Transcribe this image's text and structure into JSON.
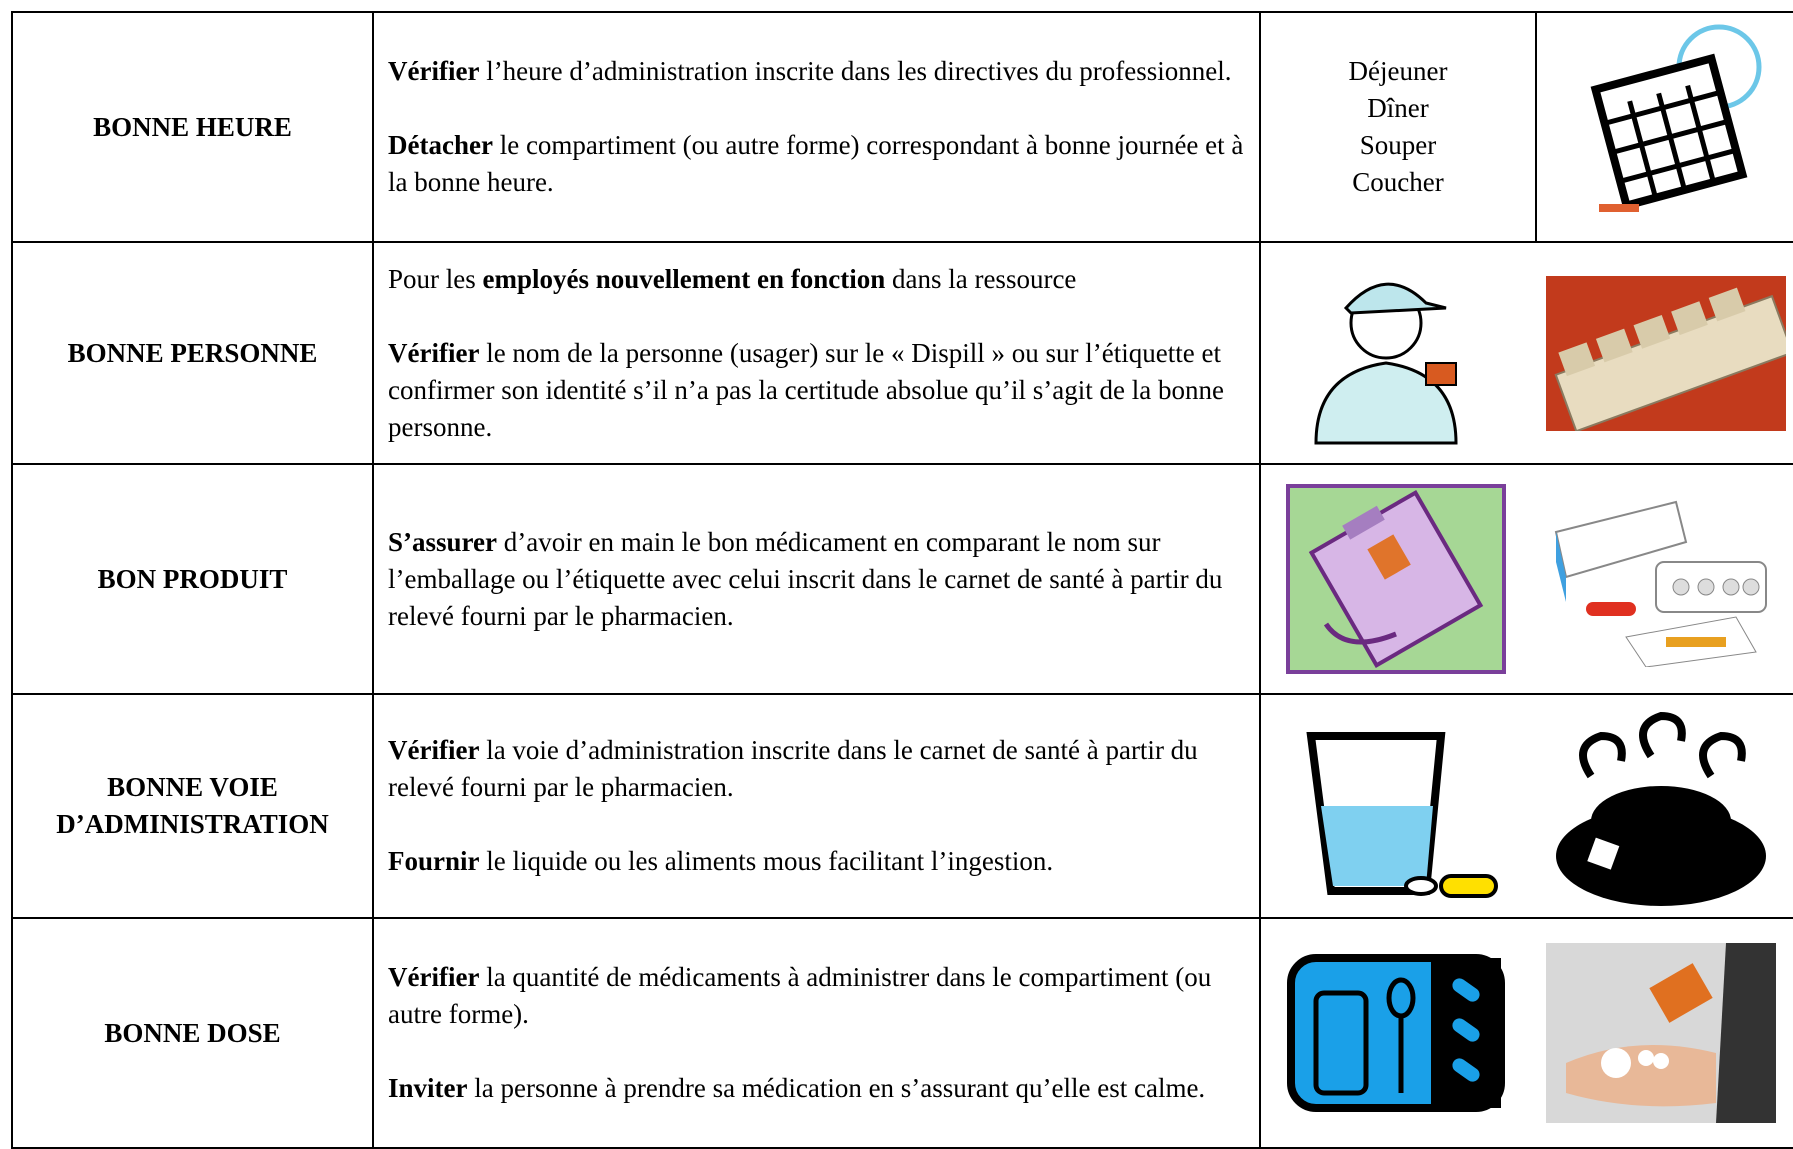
{
  "table": {
    "rows": [
      {
        "label": "BONNE HEURE",
        "paragraphs": [
          [
            {
              "text": "Vérifier",
              "bold": true
            },
            {
              "text": " l’heure d’administration inscrite dans les directives du professionnel.",
              "bold": false
            }
          ],
          [
            {
              "text": "Détacher",
              "bold": true
            },
            {
              "text": " le compartiment (ou autre forme) correspondant à bonne journée et à la bonne heure.",
              "bold": false
            }
          ]
        ],
        "times": [
          "Déjeuner",
          "Dîner",
          "Souper",
          "Coucher"
        ]
      },
      {
        "label": "BONNE PERSONNE",
        "paragraphs": [
          [
            {
              "text": "Pour les ",
              "bold": false
            },
            {
              "text": "employés nouvellement en fonction",
              "bold": true
            },
            {
              "text": " dans la ressource",
              "bold": false
            }
          ],
          [
            {
              "text": "Vérifier",
              "bold": true
            },
            {
              "text": " le nom de la personne (usager) sur le « Dispill » ou sur l’étiquette et confirmer son identité s’il n’a pas la certitude absolue qu’il s’agit de la bonne personne.",
              "bold": false
            }
          ]
        ]
      },
      {
        "label": "BON PRODUIT",
        "paragraphs": [
          [
            {
              "text": "S’assurer",
              "bold": true
            },
            {
              "text": " d’avoir en main le bon médicament en comparant le nom sur l’emballage ou l’étiquette avec celui inscrit dans le carnet de santé à partir du relevé fourni par le pharmacien.",
              "bold": false
            }
          ]
        ]
      },
      {
        "label": "BONNE VOIE D’ADMINISTRATION",
        "paragraphs": [
          [
            {
              "text": "Vérifier",
              "bold": true
            },
            {
              "text": " la voie d’administration inscrite dans le carnet de santé à partir du relevé fourni par le pharmacien.",
              "bold": false
            }
          ],
          [
            {
              "text": "Fournir",
              "bold": true
            },
            {
              "text": " le liquide ou les aliments mous facilitant l’ingestion.",
              "bold": false
            }
          ]
        ]
      },
      {
        "label": "BONNE DOSE",
        "paragraphs": [
          [
            {
              "text": "Vérifier",
              "bold": true
            },
            {
              "text": " la quantité de médicaments à administrer dans le compartiment (ou autre forme).",
              "bold": false
            }
          ],
          [
            {
              "text": "Inviter",
              "bold": true
            },
            {
              "text": " la personne à prendre sa médication en s’assurant qu’elle est calme.",
              "bold": false
            }
          ]
        ]
      }
    ]
  }
}
